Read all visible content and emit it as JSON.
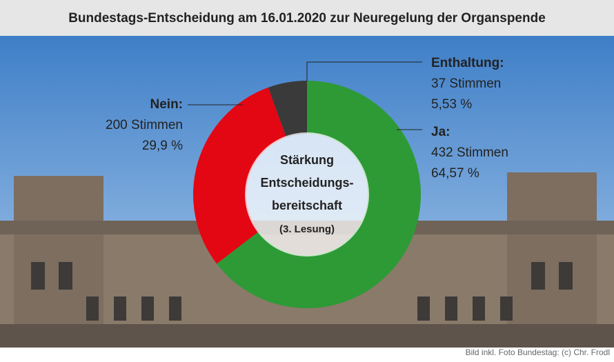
{
  "chart_data": {
    "type": "donut",
    "title": "Bundestags-Entscheidung am 16.01.2020 zur Neuregelung der Organspende",
    "categories": [
      "Ja:",
      "Nein:",
      "Enthaltung:"
    ],
    "values": [
      432,
      200,
      37
    ],
    "value_labels": [
      "432 Stimmen",
      "200 Stimmen",
      "37 Stimmen"
    ],
    "percent_labels": [
      "64,57 %",
      "29,9 %",
      "5,53 %"
    ],
    "colors": [
      "#2e9a36",
      "#e30613",
      "#3a3a3a"
    ],
    "center_text": [
      "Stärkung",
      "Entscheidungs-",
      "bereitschaft",
      "(3. Lesung)"
    ],
    "credit": "Bild inkl. Foto Bundestag: (c) Chr. Frodl"
  }
}
